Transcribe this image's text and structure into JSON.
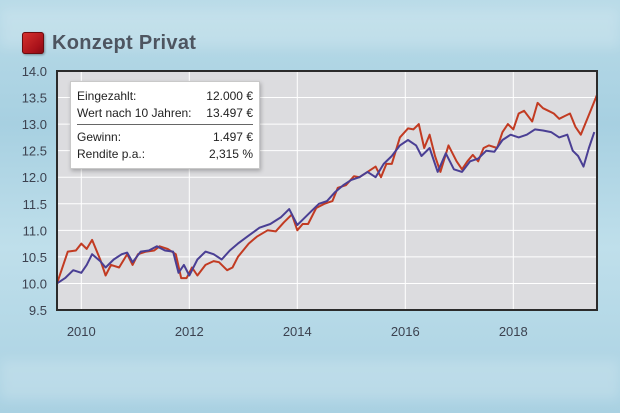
{
  "header": {
    "title": "Konzept Privat"
  },
  "info": {
    "rows": [
      {
        "label": "Eingezahlt:",
        "value": "12.000 €"
      },
      {
        "label": "Wert nach 10 Jahren:",
        "value": "13.497 €"
      },
      {
        "label": "Gewinn:",
        "value": "1.497 €"
      },
      {
        "label": "Rendite p.a.:",
        "value": "2,315 %"
      }
    ]
  },
  "chart_data": {
    "type": "line",
    "xlim": [
      2009.55,
      2019.55
    ],
    "ylim": [
      9.5,
      14.0
    ],
    "x_ticks": [
      2010,
      2012,
      2014,
      2016,
      2018
    ],
    "x_tick_labels": [
      "2010",
      "2012",
      "2014",
      "2016",
      "2018"
    ],
    "y_ticks": [
      9.5,
      10.0,
      10.5,
      11.0,
      11.5,
      12.0,
      12.5,
      13.0,
      13.5,
      14.0
    ],
    "y_tick_labels": [
      "9.5",
      "10.0",
      "10.5",
      "11.0",
      "11.5",
      "12.0",
      "12.5",
      "13.0",
      "13.5",
      "14.0"
    ],
    "grid": true,
    "series": [
      {
        "color": "#c23b22",
        "points": [
          [
            2009.55,
            10.0
          ],
          [
            2009.75,
            10.6
          ],
          [
            2009.9,
            10.62
          ],
          [
            2010.0,
            10.75
          ],
          [
            2010.1,
            10.65
          ],
          [
            2010.2,
            10.82
          ],
          [
            2010.35,
            10.45
          ],
          [
            2010.45,
            10.15
          ],
          [
            2010.55,
            10.35
          ],
          [
            2010.7,
            10.3
          ],
          [
            2010.85,
            10.55
          ],
          [
            2010.95,
            10.35
          ],
          [
            2011.05,
            10.55
          ],
          [
            2011.2,
            10.6
          ],
          [
            2011.35,
            10.62
          ],
          [
            2011.45,
            10.7
          ],
          [
            2011.6,
            10.65
          ],
          [
            2011.75,
            10.55
          ],
          [
            2011.85,
            10.1
          ],
          [
            2011.95,
            10.1
          ],
          [
            2012.05,
            10.3
          ],
          [
            2012.15,
            10.15
          ],
          [
            2012.3,
            10.35
          ],
          [
            2012.45,
            10.42
          ],
          [
            2012.55,
            10.4
          ],
          [
            2012.7,
            10.25
          ],
          [
            2012.8,
            10.3
          ],
          [
            2012.9,
            10.5
          ],
          [
            2013.1,
            10.75
          ],
          [
            2013.25,
            10.88
          ],
          [
            2013.45,
            11.0
          ],
          [
            2013.6,
            10.98
          ],
          [
            2013.75,
            11.15
          ],
          [
            2013.9,
            11.3
          ],
          [
            2014.0,
            11.0
          ],
          [
            2014.1,
            11.12
          ],
          [
            2014.2,
            11.12
          ],
          [
            2014.35,
            11.42
          ],
          [
            2014.5,
            11.5
          ],
          [
            2014.65,
            11.55
          ],
          [
            2014.75,
            11.8
          ],
          [
            2014.9,
            11.85
          ],
          [
            2015.05,
            12.02
          ],
          [
            2015.15,
            12.0
          ],
          [
            2015.3,
            12.1
          ],
          [
            2015.45,
            12.2
          ],
          [
            2015.55,
            12.0
          ],
          [
            2015.65,
            12.25
          ],
          [
            2015.75,
            12.25
          ],
          [
            2015.9,
            12.75
          ],
          [
            2016.05,
            12.92
          ],
          [
            2016.15,
            12.9
          ],
          [
            2016.25,
            13.0
          ],
          [
            2016.35,
            12.55
          ],
          [
            2016.45,
            12.8
          ],
          [
            2016.55,
            12.4
          ],
          [
            2016.65,
            12.1
          ],
          [
            2016.8,
            12.6
          ],
          [
            2016.95,
            12.3
          ],
          [
            2017.05,
            12.15
          ],
          [
            2017.15,
            12.3
          ],
          [
            2017.25,
            12.42
          ],
          [
            2017.35,
            12.3
          ],
          [
            2017.45,
            12.55
          ],
          [
            2017.55,
            12.6
          ],
          [
            2017.7,
            12.55
          ],
          [
            2017.8,
            12.85
          ],
          [
            2017.9,
            13.0
          ],
          [
            2018.0,
            12.9
          ],
          [
            2018.1,
            13.2
          ],
          [
            2018.2,
            13.25
          ],
          [
            2018.35,
            13.05
          ],
          [
            2018.45,
            13.4
          ],
          [
            2018.55,
            13.3
          ],
          [
            2018.65,
            13.25
          ],
          [
            2018.75,
            13.2
          ],
          [
            2018.85,
            13.1
          ],
          [
            2018.95,
            13.15
          ],
          [
            2019.05,
            13.2
          ],
          [
            2019.15,
            12.95
          ],
          [
            2019.25,
            12.8
          ],
          [
            2019.35,
            13.05
          ],
          [
            2019.45,
            13.3
          ],
          [
            2019.55,
            13.55
          ]
        ]
      },
      {
        "color": "#4a3f94",
        "points": [
          [
            2009.55,
            10.0
          ],
          [
            2009.7,
            10.1
          ],
          [
            2009.85,
            10.25
          ],
          [
            2010.0,
            10.2
          ],
          [
            2010.1,
            10.35
          ],
          [
            2010.2,
            10.55
          ],
          [
            2010.35,
            10.42
          ],
          [
            2010.45,
            10.3
          ],
          [
            2010.6,
            10.45
          ],
          [
            2010.75,
            10.55
          ],
          [
            2010.85,
            10.58
          ],
          [
            2010.95,
            10.4
          ],
          [
            2011.1,
            10.6
          ],
          [
            2011.25,
            10.62
          ],
          [
            2011.4,
            10.7
          ],
          [
            2011.55,
            10.62
          ],
          [
            2011.7,
            10.6
          ],
          [
            2011.8,
            10.2
          ],
          [
            2011.9,
            10.35
          ],
          [
            2012.0,
            10.15
          ],
          [
            2012.15,
            10.45
          ],
          [
            2012.3,
            10.6
          ],
          [
            2012.45,
            10.55
          ],
          [
            2012.6,
            10.45
          ],
          [
            2012.75,
            10.62
          ],
          [
            2012.9,
            10.75
          ],
          [
            2013.1,
            10.9
          ],
          [
            2013.3,
            11.05
          ],
          [
            2013.5,
            11.12
          ],
          [
            2013.7,
            11.25
          ],
          [
            2013.85,
            11.4
          ],
          [
            2014.0,
            11.1
          ],
          [
            2014.1,
            11.2
          ],
          [
            2014.25,
            11.35
          ],
          [
            2014.4,
            11.5
          ],
          [
            2014.55,
            11.55
          ],
          [
            2014.7,
            11.72
          ],
          [
            2014.85,
            11.85
          ],
          [
            2015.0,
            11.95
          ],
          [
            2015.15,
            12.0
          ],
          [
            2015.3,
            12.1
          ],
          [
            2015.45,
            12.0
          ],
          [
            2015.6,
            12.25
          ],
          [
            2015.75,
            12.4
          ],
          [
            2015.9,
            12.6
          ],
          [
            2016.05,
            12.7
          ],
          [
            2016.2,
            12.6
          ],
          [
            2016.3,
            12.4
          ],
          [
            2016.45,
            12.55
          ],
          [
            2016.6,
            12.1
          ],
          [
            2016.75,
            12.45
          ],
          [
            2016.9,
            12.15
          ],
          [
            2017.05,
            12.1
          ],
          [
            2017.2,
            12.3
          ],
          [
            2017.35,
            12.35
          ],
          [
            2017.5,
            12.5
          ],
          [
            2017.65,
            12.48
          ],
          [
            2017.8,
            12.7
          ],
          [
            2017.95,
            12.8
          ],
          [
            2018.1,
            12.75
          ],
          [
            2018.25,
            12.8
          ],
          [
            2018.4,
            12.9
          ],
          [
            2018.55,
            12.88
          ],
          [
            2018.7,
            12.85
          ],
          [
            2018.85,
            12.75
          ],
          [
            2019.0,
            12.8
          ],
          [
            2019.1,
            12.5
          ],
          [
            2019.2,
            12.4
          ],
          [
            2019.3,
            12.2
          ],
          [
            2019.4,
            12.55
          ],
          [
            2019.5,
            12.85
          ]
        ]
      }
    ]
  }
}
